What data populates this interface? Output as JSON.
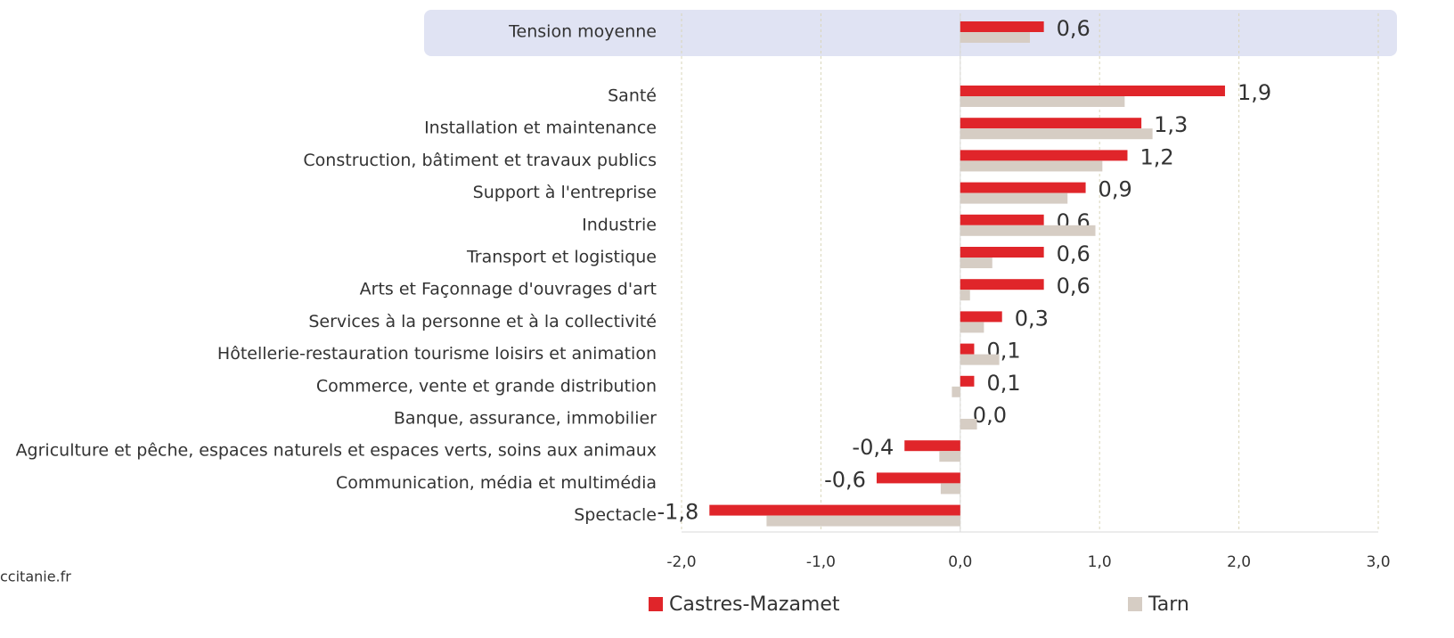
{
  "chart_data": {
    "type": "bar",
    "orientation": "horizontal",
    "categories": [
      "Tension moyenne",
      "Santé",
      "Installation et maintenance",
      "Construction, bâtiment et travaux publics",
      "Support à l'entreprise",
      "Industrie",
      "Transport et logistique",
      "Arts et Façonnage d'ouvrages d'art",
      "Services à la personne et à la collectivité",
      "Hôtellerie-restauration tourisme loisirs et animation",
      "Commerce, vente et grande distribution",
      "Banque, assurance, immobilier",
      "Agriculture et pêche, espaces naturels et espaces verts, soins aux animaux",
      "Communication, média et multimédia",
      "Spectacle"
    ],
    "series": [
      {
        "name": "Castres-Mazamet",
        "color": "#e0252a",
        "values": [
          0.6,
          1.9,
          1.3,
          1.2,
          0.9,
          0.6,
          0.6,
          0.6,
          0.3,
          0.1,
          0.1,
          0.0,
          -0.4,
          -0.6,
          -1.8
        ],
        "value_labels": [
          "0,6",
          "1,9",
          "1,3",
          "1,2",
          "0,9",
          "0,6",
          "0,6",
          "0,6",
          "0,3",
          "0,1",
          "0,1",
          "0,0",
          "-0,4",
          "-0,6",
          "-1,8"
        ]
      },
      {
        "name": "Tarn",
        "color": "#d6cdc4",
        "values": [
          0.5,
          1.18,
          1.38,
          1.02,
          0.77,
          0.97,
          0.23,
          0.07,
          0.17,
          0.28,
          -0.06,
          0.12,
          -0.15,
          -0.14,
          -1.39
        ]
      }
    ],
    "xlim": [
      -2,
      3
    ],
    "xticks": [
      {
        "value": -2,
        "label": "-2,0"
      },
      {
        "value": -1,
        "label": "-1,0"
      },
      {
        "value": 0,
        "label": "0,0"
      },
      {
        "value": 1,
        "label": "1,0"
      },
      {
        "value": 2,
        "label": "2,0"
      },
      {
        "value": 3,
        "label": "3,0"
      }
    ],
    "grid": true,
    "legend": "bottom",
    "source": "ccitanie.fr"
  }
}
